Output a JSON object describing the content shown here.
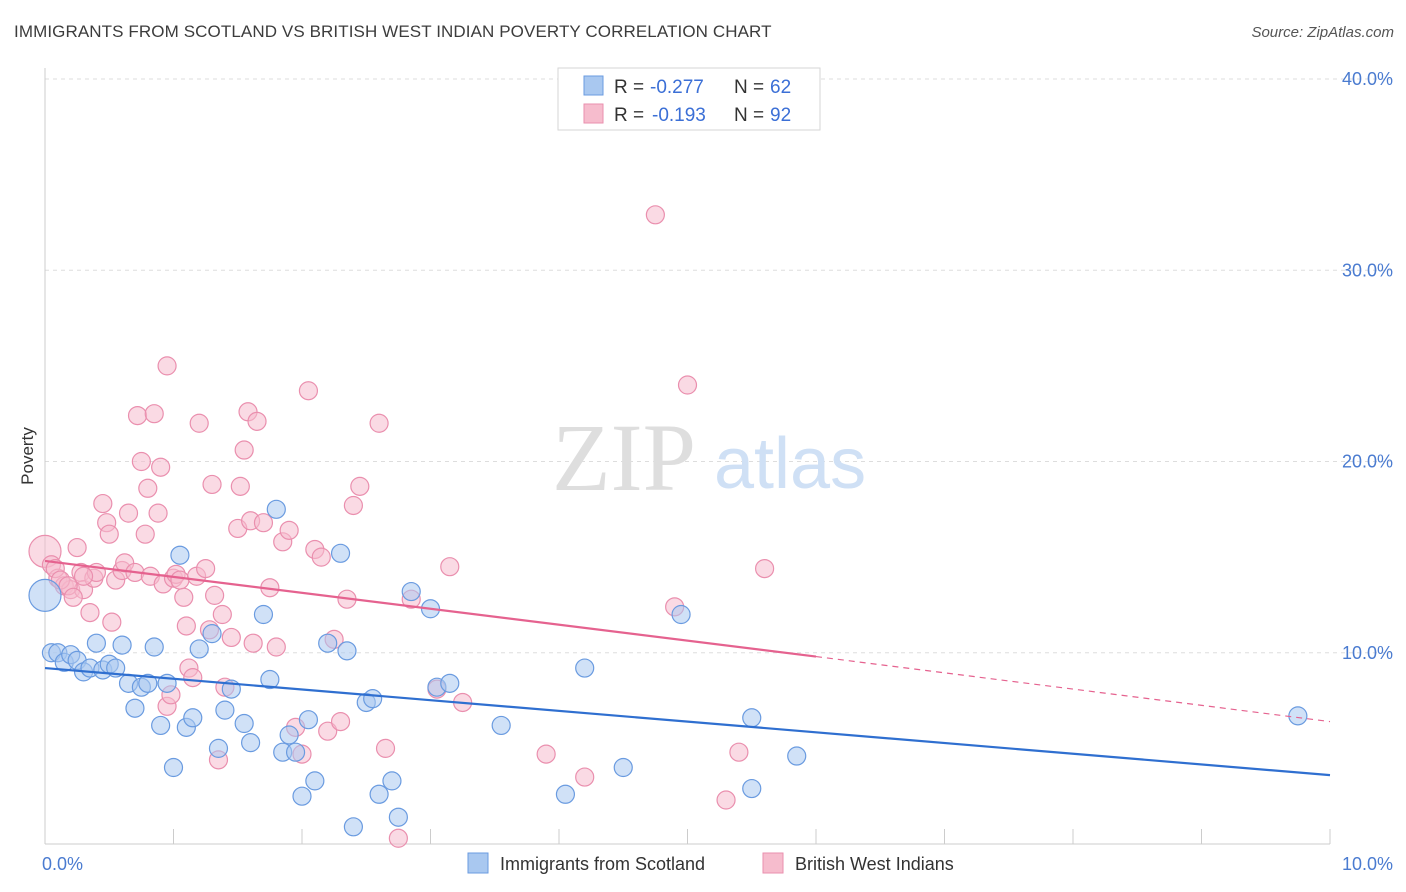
{
  "title": "IMMIGRANTS FROM SCOTLAND VS BRITISH WEST INDIAN POVERTY CORRELATION CHART",
  "source": "Source: ZipAtlas.com",
  "watermark": {
    "zip": "ZIP",
    "atlas": "atlas"
  },
  "legend": {
    "rows": [
      {
        "r_label": "R = ",
        "r_value": "-0.277",
        "n_label": "N = ",
        "n_value": "62"
      },
      {
        "r_label": "R = ",
        "r_value": "-0.193",
        "n_label": "N = ",
        "n_value": "92"
      }
    ]
  },
  "colors": {
    "blue_fill": "#a9c8f0",
    "blue_stroke": "#6a9be0",
    "blue_line": "#2f6fd0",
    "pink_fill": "#f6bccd",
    "pink_stroke": "#ea8fae",
    "pink_line": "#e5628f",
    "grid": "#dddddd",
    "axis_text": "#4a7bd0"
  },
  "chart_data": {
    "type": "scatter",
    "title": "IMMIGRANTS FROM SCOTLAND VS BRITISH WEST INDIAN POVERTY CORRELATION CHART",
    "xlabel": "",
    "ylabel": "Poverty",
    "xlim": [
      0,
      10
    ],
    "ylim": [
      0,
      40
    ],
    "x_tick_labels": [
      "0.0%",
      "10.0%"
    ],
    "y_ticks": [
      10,
      20,
      30,
      40
    ],
    "y_tick_labels": [
      "10.0%",
      "20.0%",
      "30.0%",
      "40.0%"
    ],
    "grid": true,
    "legend_position": "top-center",
    "series": [
      {
        "name": "Immigrants from Scotland",
        "color": "#a9c8f0",
        "r": -0.277,
        "n": 62,
        "trend": {
          "x": [
            0.0,
            10.0
          ],
          "y": [
            9.2,
            3.6
          ]
        },
        "points": [
          [
            0.05,
            10.0
          ],
          [
            0.1,
            10.0
          ],
          [
            0.15,
            9.5
          ],
          [
            0.2,
            9.9
          ],
          [
            0.25,
            9.6
          ],
          [
            0.3,
            9.0
          ],
          [
            0.35,
            9.2
          ],
          [
            0.4,
            10.5
          ],
          [
            0.45,
            9.1
          ],
          [
            0.5,
            9.4
          ],
          [
            0.55,
            9.2
          ],
          [
            0.6,
            10.4
          ],
          [
            0.65,
            8.4
          ],
          [
            0.7,
            7.1
          ],
          [
            0.75,
            8.2
          ],
          [
            0.8,
            8.4
          ],
          [
            0.85,
            10.3
          ],
          [
            0.9,
            6.2
          ],
          [
            0.95,
            8.4
          ],
          [
            1.0,
            4.0
          ],
          [
            1.05,
            15.1
          ],
          [
            1.1,
            6.1
          ],
          [
            1.15,
            6.6
          ],
          [
            1.2,
            10.2
          ],
          [
            1.3,
            11.0
          ],
          [
            1.35,
            5.0
          ],
          [
            1.4,
            7.0
          ],
          [
            1.45,
            8.1
          ],
          [
            1.55,
            6.3
          ],
          [
            1.6,
            5.3
          ],
          [
            1.7,
            12.0
          ],
          [
            1.75,
            8.6
          ],
          [
            1.8,
            17.5
          ],
          [
            1.85,
            4.8
          ],
          [
            1.9,
            5.7
          ],
          [
            1.95,
            4.8
          ],
          [
            2.0,
            2.5
          ],
          [
            2.05,
            6.5
          ],
          [
            2.1,
            3.3
          ],
          [
            2.2,
            10.5
          ],
          [
            2.3,
            15.2
          ],
          [
            2.35,
            10.1
          ],
          [
            2.4,
            0.9
          ],
          [
            2.5,
            7.4
          ],
          [
            2.55,
            7.6
          ],
          [
            2.6,
            2.6
          ],
          [
            2.7,
            3.3
          ],
          [
            2.75,
            1.4
          ],
          [
            2.85,
            13.2
          ],
          [
            3.0,
            12.3
          ],
          [
            3.05,
            8.2
          ],
          [
            3.15,
            8.4
          ],
          [
            3.55,
            6.2
          ],
          [
            4.05,
            2.6
          ],
          [
            4.2,
            9.2
          ],
          [
            4.5,
            4.0
          ],
          [
            4.95,
            12.0
          ],
          [
            5.5,
            6.6
          ],
          [
            5.5,
            2.9
          ],
          [
            5.85,
            4.6
          ],
          [
            9.75,
            6.7
          ],
          [
            0.0,
            13.0
          ]
        ]
      },
      {
        "name": "British West Indians",
        "color": "#f6bccd",
        "r": -0.193,
        "n": 92,
        "trend": {
          "x": [
            0.0,
            6.0
          ],
          "y": [
            14.8,
            9.8
          ]
        },
        "trend_dashed": {
          "x": [
            6.0,
            10.0
          ],
          "y": [
            9.8,
            6.4
          ]
        },
        "points": [
          [
            0.0,
            15.3
          ],
          [
            0.05,
            14.6
          ],
          [
            0.1,
            13.9
          ],
          [
            0.15,
            13.5
          ],
          [
            0.2,
            13.3
          ],
          [
            0.25,
            15.5
          ],
          [
            0.28,
            14.2
          ],
          [
            0.3,
            13.3
          ],
          [
            0.35,
            12.1
          ],
          [
            0.38,
            13.9
          ],
          [
            0.4,
            14.2
          ],
          [
            0.45,
            17.8
          ],
          [
            0.48,
            16.8
          ],
          [
            0.5,
            16.2
          ],
          [
            0.52,
            11.6
          ],
          [
            0.55,
            13.8
          ],
          [
            0.6,
            14.3
          ],
          [
            0.62,
            14.7
          ],
          [
            0.65,
            17.3
          ],
          [
            0.7,
            14.2
          ],
          [
            0.72,
            22.4
          ],
          [
            0.75,
            20.0
          ],
          [
            0.78,
            16.2
          ],
          [
            0.8,
            18.6
          ],
          [
            0.82,
            14.0
          ],
          [
            0.85,
            22.5
          ],
          [
            0.88,
            17.3
          ],
          [
            0.9,
            19.7
          ],
          [
            0.92,
            13.6
          ],
          [
            0.95,
            7.2
          ],
          [
            0.95,
            25.0
          ],
          [
            0.98,
            7.8
          ],
          [
            1.0,
            13.9
          ],
          [
            1.02,
            14.1
          ],
          [
            1.05,
            13.8
          ],
          [
            1.08,
            12.9
          ],
          [
            1.1,
            11.4
          ],
          [
            1.12,
            9.2
          ],
          [
            1.15,
            8.7
          ],
          [
            1.18,
            14.0
          ],
          [
            1.2,
            22.0
          ],
          [
            1.25,
            14.4
          ],
          [
            1.28,
            11.2
          ],
          [
            1.3,
            18.8
          ],
          [
            1.32,
            13.0
          ],
          [
            1.35,
            4.4
          ],
          [
            1.38,
            12.0
          ],
          [
            1.4,
            8.2
          ],
          [
            1.45,
            10.8
          ],
          [
            1.5,
            16.5
          ],
          [
            1.52,
            18.7
          ],
          [
            1.55,
            20.6
          ],
          [
            1.58,
            22.6
          ],
          [
            1.6,
            16.9
          ],
          [
            1.62,
            10.5
          ],
          [
            1.65,
            22.1
          ],
          [
            1.7,
            16.8
          ],
          [
            1.75,
            13.4
          ],
          [
            1.8,
            10.3
          ],
          [
            1.85,
            15.8
          ],
          [
            1.9,
            16.4
          ],
          [
            1.95,
            6.1
          ],
          [
            2.0,
            4.7
          ],
          [
            2.05,
            23.7
          ],
          [
            2.1,
            15.4
          ],
          [
            2.15,
            15.0
          ],
          [
            2.2,
            5.9
          ],
          [
            2.25,
            10.7
          ],
          [
            2.3,
            6.4
          ],
          [
            2.35,
            12.8
          ],
          [
            2.4,
            17.7
          ],
          [
            2.45,
            18.7
          ],
          [
            2.6,
            22.0
          ],
          [
            2.65,
            5.0
          ],
          [
            2.75,
            0.3
          ],
          [
            2.85,
            12.8
          ],
          [
            3.05,
            8.1
          ],
          [
            3.15,
            14.5
          ],
          [
            3.25,
            7.4
          ],
          [
            3.9,
            4.7
          ],
          [
            4.2,
            3.5
          ],
          [
            4.75,
            32.9
          ],
          [
            4.9,
            12.4
          ],
          [
            5.0,
            24.0
          ],
          [
            5.3,
            2.3
          ],
          [
            5.4,
            4.8
          ],
          [
            5.6,
            14.4
          ],
          [
            0.08,
            14.4
          ],
          [
            0.12,
            13.8
          ],
          [
            0.18,
            13.5
          ],
          [
            0.22,
            12.9
          ],
          [
            0.3,
            14.0
          ]
        ]
      }
    ]
  }
}
